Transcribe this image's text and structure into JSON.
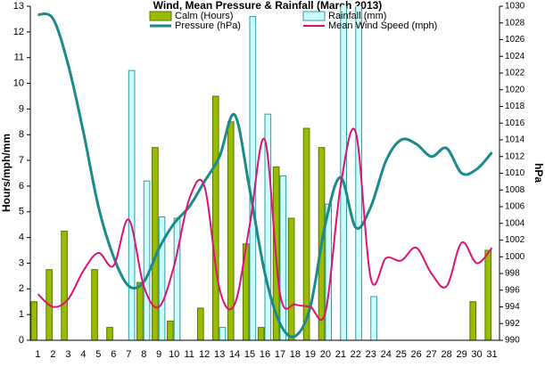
{
  "chart_data": {
    "type": "combo",
    "title": "Wind, Mean Pressure & Rainfall (March 2013)",
    "y_label": "Hours/mph/mm",
    "y2_label": "hPa",
    "categories": [
      "1",
      "2",
      "3",
      "4",
      "5",
      "6",
      "7",
      "8",
      "9",
      "10",
      "11",
      "12",
      "13",
      "14",
      "15",
      "16",
      "17",
      "18",
      "19",
      "20",
      "21",
      "22",
      "23",
      "24",
      "25",
      "26",
      "27",
      "28",
      "29",
      "30",
      "31"
    ],
    "series": [
      {
        "name": "Calm (Hours)",
        "type": "bar",
        "color": "#99bb00",
        "stroke": "#557700",
        "values": [
          1.5,
          2.75,
          4.25,
          0,
          2.75,
          0.5,
          0,
          2.25,
          7.5,
          0.75,
          0,
          1.25,
          9.5,
          8.5,
          3.75,
          0.5,
          6.75,
          4.75,
          8.25,
          7.5,
          0,
          0,
          0,
          0,
          0,
          0,
          0,
          0,
          0,
          1.5,
          3.5
        ]
      },
      {
        "name": "Rainfall (mm)",
        "type": "bar",
        "color": "#ccffff",
        "stroke": "#339999",
        "values": [
          0,
          0,
          0,
          0,
          0,
          0,
          10.5,
          6.2,
          4.8,
          4.75,
          0,
          0,
          0.5,
          0,
          12.6,
          8.8,
          6.4,
          0,
          0,
          5.3,
          13.5,
          13.5,
          1.7,
          0,
          0,
          0,
          0,
          0,
          0,
          0,
          0
        ]
      },
      {
        "name": "Pressure (hPa)",
        "type": "line",
        "axis": "y2",
        "color": "#1a8a8a",
        "values": [
          1029,
          1028.5,
          1023,
          1015,
          1006,
          1000,
          996.5,
          997,
          1001,
          1004,
          1006,
          1009,
          1012,
          1017,
          1008,
          998,
          992,
          990.5,
          994,
          1004,
          1009.5,
          1003.5,
          1006,
          1011.5,
          1014,
          1013.5,
          1012,
          1013,
          1010,
          1010.5,
          1012.5
        ]
      },
      {
        "name": "Mean Wind Speed (mph)",
        "type": "line",
        "color": "#dd1177",
        "values": [
          1.8,
          1.3,
          1.6,
          2.7,
          3.4,
          2.9,
          4.7,
          2.1,
          1.3,
          2.9,
          5.5,
          6.0,
          2.0,
          1.4,
          4.5,
          7.8,
          1.8,
          1.4,
          1.3,
          1.1,
          6.0,
          8.1,
          2.4,
          3.2,
          3.1,
          3.6,
          2.6,
          2.1,
          3.8,
          3.0,
          3.6
        ]
      }
    ],
    "ylim": [
      0,
      13
    ],
    "yticks": [
      0,
      1,
      2,
      3,
      4,
      5,
      6,
      7,
      8,
      9,
      10,
      11,
      12,
      13
    ],
    "y2lim": [
      990,
      1030
    ],
    "y2ticks": [
      990,
      992,
      994,
      996,
      998,
      1000,
      1002,
      1004,
      1006,
      1008,
      1010,
      1012,
      1014,
      1016,
      1018,
      1020,
      1022,
      1024,
      1026,
      1028,
      1030
    ],
    "grid": false
  }
}
